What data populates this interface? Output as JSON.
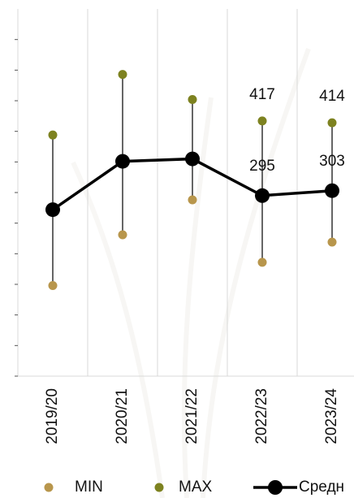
{
  "chart_data": {
    "type": "range-line",
    "categories": [
      "2019/20",
      "2020/21",
      "2021/22",
      "2022/23",
      "2023/24"
    ],
    "series": [
      {
        "name": "MIN",
        "color": "#b8964c",
        "values": [
          148,
          231,
          288,
          186,
          219
        ]
      },
      {
        "name": "MAX",
        "color": "#7d8220",
        "values": [
          394,
          493,
          452,
          417,
          414
        ],
        "value_labels": [
          null,
          null,
          null,
          "417",
          "414"
        ]
      },
      {
        "name": "Средн",
        "color": "#000000",
        "values": [
          272,
          351,
          355,
          295,
          303
        ],
        "value_labels": [
          null,
          null,
          null,
          "295",
          "303"
        ]
      }
    ],
    "ylim": [
      0,
      600
    ],
    "yticks": [
      0,
      50,
      100,
      150,
      200,
      250,
      300,
      350,
      400,
      450,
      500,
      550
    ],
    "grid": true
  }
}
